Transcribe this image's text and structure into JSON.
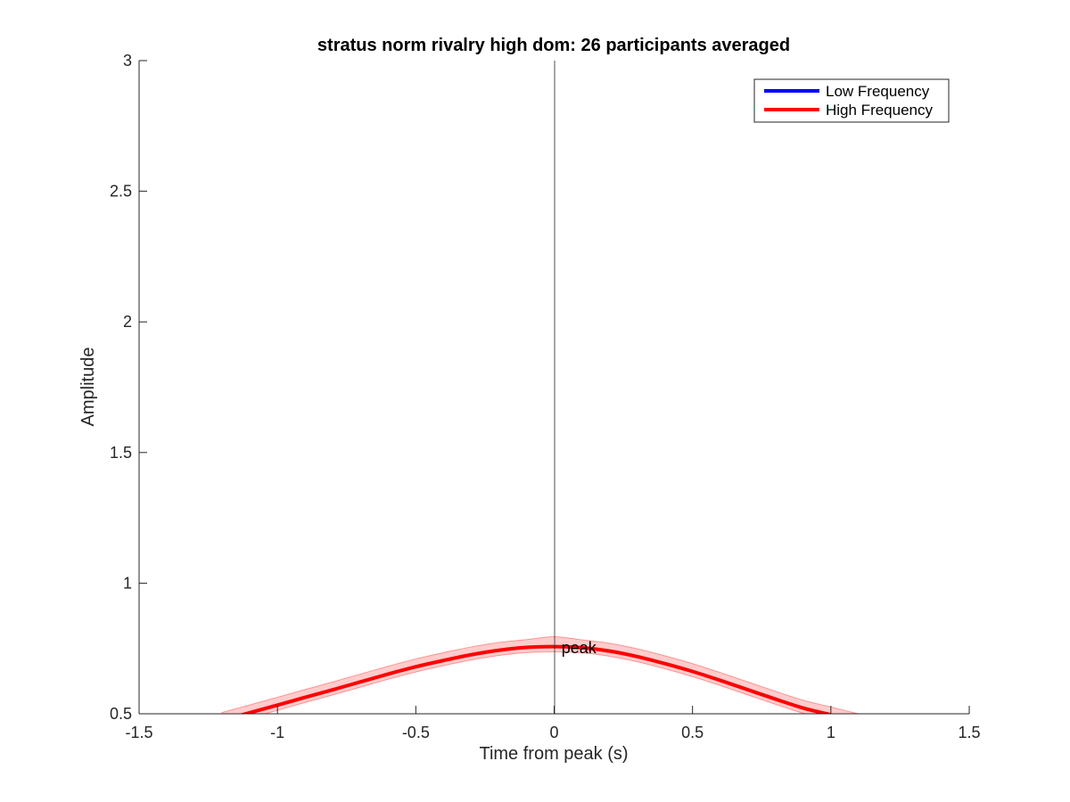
{
  "chart_data": {
    "type": "line",
    "title": "stratus norm rivalry high dom: 26 participants averaged",
    "xlabel": "Time from peak (s)",
    "ylabel": "Amplitude",
    "xlim": [
      -1.5,
      1.5
    ],
    "ylim": [
      0.5,
      3
    ],
    "xticks": [
      -1.5,
      -1,
      -0.5,
      0,
      0.5,
      1,
      1.5
    ],
    "xtick_labels": [
      "-1.5",
      "-1",
      "-0.5",
      "0",
      "0.5",
      "1",
      "1.5"
    ],
    "yticks": [
      0.5,
      1,
      1.5,
      2,
      2.5,
      3
    ],
    "ytick_labels": [
      "0.5",
      "1",
      "1.5",
      "2",
      "2.5",
      "3"
    ],
    "grid": false,
    "legend_position": "top-right",
    "vertical_line_x": 0,
    "annotation": {
      "text": "peak",
      "x": 0.02,
      "y": 0.755
    },
    "series": [
      {
        "name": "Low Frequency",
        "color": "#0000ff",
        "x": [],
        "y": []
      },
      {
        "name": "High Frequency",
        "color": "#ff0000",
        "band_color": "#ff0000",
        "x": [
          -1.2,
          -1.1,
          -1.0,
          -0.9,
          -0.8,
          -0.7,
          -0.6,
          -0.5,
          -0.4,
          -0.3,
          -0.2,
          -0.1,
          0.0,
          0.1,
          0.2,
          0.3,
          0.4,
          0.5,
          0.6,
          0.7,
          0.8,
          0.9,
          1.0,
          1.1
        ],
        "y": [
          0.475,
          0.504,
          0.533,
          0.563,
          0.592,
          0.622,
          0.652,
          0.68,
          0.704,
          0.726,
          0.743,
          0.754,
          0.757,
          0.753,
          0.74,
          0.719,
          0.692,
          0.662,
          0.628,
          0.592,
          0.556,
          0.522,
          0.496,
          0.47
        ],
        "y_lower": [
          0.455,
          0.484,
          0.513,
          0.543,
          0.572,
          0.602,
          0.632,
          0.66,
          0.684,
          0.706,
          0.723,
          0.734,
          0.737,
          0.733,
          0.72,
          0.699,
          0.672,
          0.642,
          0.608,
          0.572,
          0.536,
          0.502,
          0.476,
          0.45
        ],
        "y_upper": [
          0.505,
          0.534,
          0.563,
          0.593,
          0.622,
          0.652,
          0.682,
          0.71,
          0.734,
          0.756,
          0.773,
          0.784,
          0.795,
          0.783,
          0.77,
          0.749,
          0.722,
          0.692,
          0.658,
          0.622,
          0.586,
          0.552,
          0.526,
          0.5
        ]
      }
    ]
  }
}
